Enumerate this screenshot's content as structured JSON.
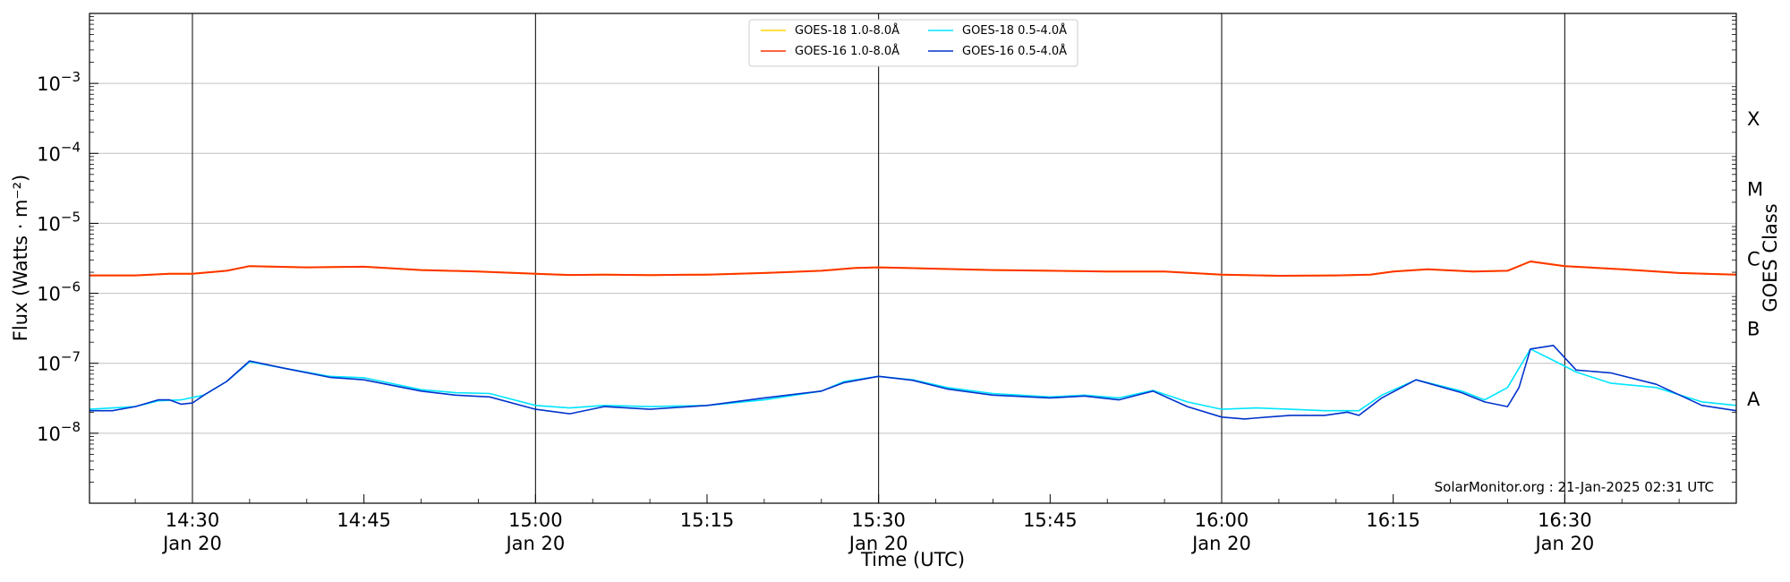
{
  "chart_data": {
    "type": "line",
    "title": "",
    "xlabel": "Time (UTC)",
    "ylabel": "Flux (Watts · m⁻²)",
    "y2label": "GOES Class",
    "yscale": "log",
    "xlim": [
      "14:21",
      "16:45"
    ],
    "ylim": [
      1e-09,
      0.01
    ],
    "x_ticks": [
      {
        "time": "14:30",
        "label": "14:30",
        "sublabel": "Jan 20",
        "major_line": true
      },
      {
        "time": "14:45",
        "label": "14:45",
        "sublabel": "",
        "major_line": false
      },
      {
        "time": "15:00",
        "label": "15:00",
        "sublabel": "Jan 20",
        "major_line": true
      },
      {
        "time": "15:15",
        "label": "15:15",
        "sublabel": "",
        "major_line": false
      },
      {
        "time": "15:30",
        "label": "15:30",
        "sublabel": "Jan 20",
        "major_line": true
      },
      {
        "time": "15:45",
        "label": "15:45",
        "sublabel": "",
        "major_line": false
      },
      {
        "time": "16:00",
        "label": "16:00",
        "sublabel": "Jan 20",
        "major_line": true
      },
      {
        "time": "16:15",
        "label": "16:15",
        "sublabel": "",
        "major_line": false
      },
      {
        "time": "16:30",
        "label": "16:30",
        "sublabel": "Jan 20",
        "major_line": true
      }
    ],
    "y_ticks": [
      {
        "value": 1e-08,
        "base": "10",
        "exp": "−8"
      },
      {
        "value": 1e-07,
        "base": "10",
        "exp": "−7"
      },
      {
        "value": 1e-06,
        "base": "10",
        "exp": "−6"
      },
      {
        "value": 1e-05,
        "base": "10",
        "exp": "−5"
      },
      {
        "value": 0.0001,
        "base": "10",
        "exp": "−4"
      },
      {
        "value": 0.001,
        "base": "10",
        "exp": "−3"
      }
    ],
    "goes_classes": [
      {
        "label": "A",
        "value": 3.16e-08
      },
      {
        "label": "B",
        "value": 3.16e-07
      },
      {
        "label": "C",
        "value": 3.16e-06
      },
      {
        "label": "M",
        "value": 3.16e-05
      },
      {
        "label": "X",
        "value": 0.000316
      }
    ],
    "grid": true,
    "legend_placement": "top-center",
    "credit": "SolarMonitor.org : 21-Jan-2025 02:31 UTC",
    "series": [
      {
        "name": "GOES-18 1.0-8.0Å",
        "color": "#ffd700",
        "x": [
          "14:21",
          "14:25",
          "14:28",
          "14:30",
          "14:33",
          "14:35",
          "14:40",
          "14:45",
          "14:50",
          "14:55",
          "15:00",
          "15:03",
          "15:06",
          "15:10",
          "15:15",
          "15:20",
          "15:25",
          "15:28",
          "15:30",
          "15:35",
          "15:40",
          "15:45",
          "15:50",
          "15:55",
          "16:00",
          "16:05",
          "16:10",
          "16:13",
          "16:15",
          "16:18",
          "16:22",
          "16:25",
          "16:27",
          "16:30",
          "16:35",
          "16:40",
          "16:45"
        ],
        "values": [
          1.8e-06,
          1.8e-06,
          1.9e-06,
          1.9e-06,
          2.1e-06,
          2.45e-06,
          2.35e-06,
          2.4e-06,
          2.15e-06,
          2.05e-06,
          1.9e-06,
          1.83e-06,
          1.85e-06,
          1.82e-06,
          1.85e-06,
          1.95e-06,
          2.1e-06,
          2.3e-06,
          2.35e-06,
          2.25e-06,
          2.15e-06,
          2.1e-06,
          2.05e-06,
          2.05e-06,
          1.85e-06,
          1.78e-06,
          1.8e-06,
          1.85e-06,
          2.05e-06,
          2.2e-06,
          2.05e-06,
          2.1e-06,
          2.85e-06,
          2.45e-06,
          2.2e-06,
          1.95e-06,
          1.85e-06
        ]
      },
      {
        "name": "GOES-18 0.5-4.0Å",
        "color": "#00e5ff",
        "x": [
          "14:21",
          "14:25",
          "14:27",
          "14:29",
          "14:31",
          "14:33",
          "14:35",
          "14:38",
          "14:42",
          "14:45",
          "14:50",
          "14:53",
          "14:56",
          "15:00",
          "15:03",
          "15:06",
          "15:10",
          "15:15",
          "15:20",
          "15:25",
          "15:27",
          "15:30",
          "15:33",
          "15:36",
          "15:40",
          "15:45",
          "15:48",
          "15:51",
          "15:54",
          "15:57",
          "16:00",
          "16:03",
          "16:06",
          "16:09",
          "16:12",
          "16:14",
          "16:17",
          "16:21",
          "16:23",
          "16:25",
          "16:27",
          "16:29",
          "16:31",
          "16:34",
          "16:38",
          "16:42",
          "16:45"
        ],
        "values": [
          2.2e-08,
          2.4e-08,
          2.9e-08,
          3e-08,
          3.5e-08,
          5.5e-08,
          1.05e-07,
          8.5e-08,
          6.5e-08,
          6.2e-08,
          4.2e-08,
          3.8e-08,
          3.7e-08,
          2.5e-08,
          2.3e-08,
          2.5e-08,
          2.4e-08,
          2.5e-08,
          3e-08,
          4e-08,
          5.5e-08,
          6.5e-08,
          5.8e-08,
          4.5e-08,
          3.7e-08,
          3.3e-08,
          3.5e-08,
          3.2e-08,
          4.1e-08,
          2.8e-08,
          2.2e-08,
          2.3e-08,
          2.2e-08,
          2.1e-08,
          2.1e-08,
          3.5e-08,
          5.8e-08,
          4e-08,
          3e-08,
          4.5e-08,
          1.6e-07,
          1.1e-07,
          7.5e-08,
          5.2e-08,
          4.5e-08,
          2.8e-08,
          2.5e-08
        ]
      },
      {
        "name": "GOES-16 1.0-8.0Å",
        "color": "#ff3300",
        "x": [
          "14:21",
          "14:25",
          "14:28",
          "14:30",
          "14:33",
          "14:35",
          "14:40",
          "14:45",
          "14:50",
          "14:55",
          "15:00",
          "15:03",
          "15:06",
          "15:10",
          "15:15",
          "15:20",
          "15:25",
          "15:28",
          "15:30",
          "15:35",
          "15:40",
          "15:45",
          "15:50",
          "15:55",
          "16:00",
          "16:05",
          "16:10",
          "16:13",
          "16:15",
          "16:18",
          "16:22",
          "16:25",
          "16:27",
          "16:30",
          "16:35",
          "16:40",
          "16:45"
        ],
        "values": [
          1.8e-06,
          1.8e-06,
          1.9e-06,
          1.9e-06,
          2.1e-06,
          2.45e-06,
          2.35e-06,
          2.4e-06,
          2.15e-06,
          2.05e-06,
          1.9e-06,
          1.83e-06,
          1.85e-06,
          1.82e-06,
          1.85e-06,
          1.95e-06,
          2.1e-06,
          2.3e-06,
          2.35e-06,
          2.25e-06,
          2.15e-06,
          2.1e-06,
          2.05e-06,
          2.05e-06,
          1.85e-06,
          1.78e-06,
          1.8e-06,
          1.85e-06,
          2.05e-06,
          2.2e-06,
          2.05e-06,
          2.1e-06,
          2.85e-06,
          2.45e-06,
          2.2e-06,
          1.95e-06,
          1.85e-06
        ]
      },
      {
        "name": "GOES-16 0.5-4.0Å",
        "color": "#0033cc",
        "x": [
          "14:21",
          "14:23",
          "14:25",
          "14:27",
          "14:28",
          "14:29",
          "14:30",
          "14:31",
          "14:33",
          "14:35",
          "14:38",
          "14:42",
          "14:45",
          "14:50",
          "14:53",
          "14:56",
          "15:00",
          "15:03",
          "15:06",
          "15:10",
          "15:15",
          "15:20",
          "15:25",
          "15:27",
          "15:30",
          "15:33",
          "15:36",
          "15:40",
          "15:45",
          "15:48",
          "15:51",
          "15:54",
          "15:57",
          "16:00",
          "16:02",
          "16:04",
          "16:06",
          "16:09",
          "16:11",
          "16:12",
          "16:14",
          "16:17",
          "16:21",
          "16:23",
          "16:25",
          "16:26",
          "16:27",
          "16:29",
          "16:31",
          "16:34",
          "16:38",
          "16:42",
          "16:45"
        ],
        "values": [
          2.1e-08,
          2.1e-08,
          2.4e-08,
          3e-08,
          3e-08,
          2.6e-08,
          2.7e-08,
          3.5e-08,
          5.5e-08,
          1.08e-07,
          8.5e-08,
          6.3e-08,
          5.8e-08,
          4e-08,
          3.5e-08,
          3.3e-08,
          2.2e-08,
          1.9e-08,
          2.4e-08,
          2.2e-08,
          2.5e-08,
          3.2e-08,
          4e-08,
          5.3e-08,
          6.5e-08,
          5.7e-08,
          4.3e-08,
          3.5e-08,
          3.2e-08,
          3.4e-08,
          3e-08,
          4e-08,
          2.4e-08,
          1.7e-08,
          1.6e-08,
          1.7e-08,
          1.8e-08,
          1.8e-08,
          2e-08,
          1.8e-08,
          3.2e-08,
          5.8e-08,
          3.8e-08,
          2.8e-08,
          2.4e-08,
          4.5e-08,
          1.6e-07,
          1.8e-07,
          8e-08,
          7.3e-08,
          5e-08,
          2.5e-08,
          2.1e-08
        ]
      }
    ],
    "legend_order": [
      0,
      2,
      1,
      3
    ]
  }
}
